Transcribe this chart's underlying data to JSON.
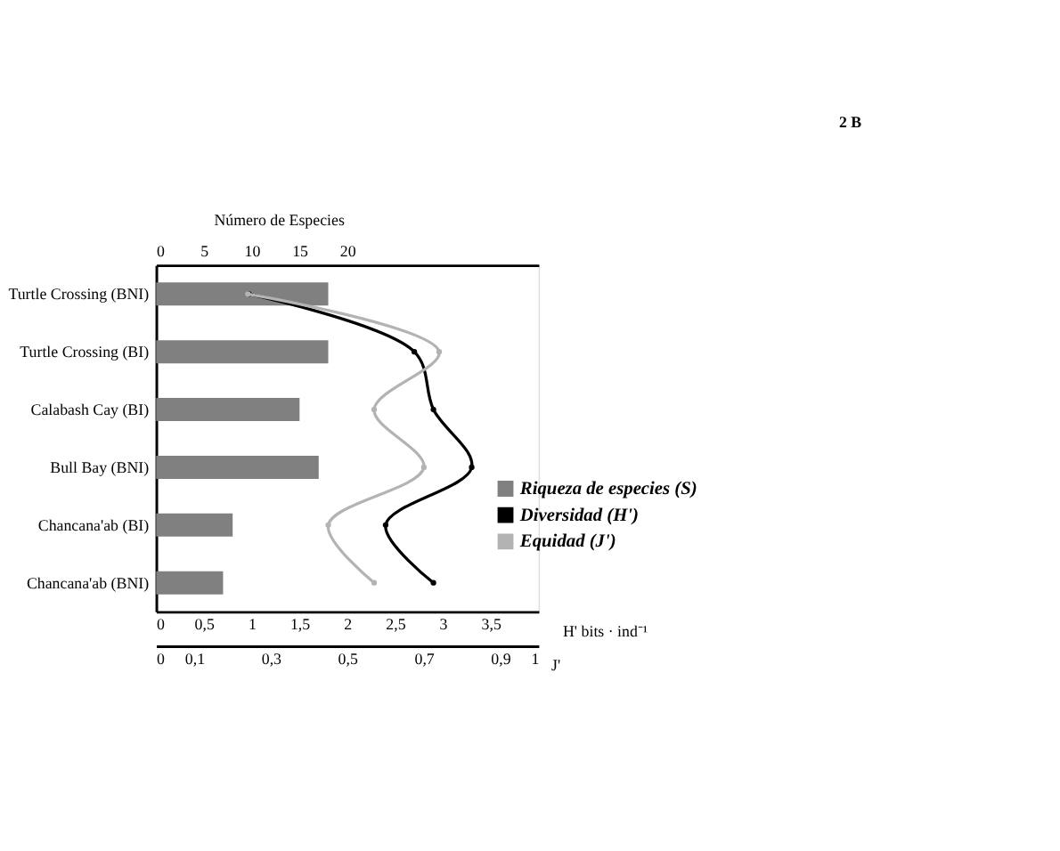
{
  "chart_data": [
    {
      "type": "bar",
      "orientation": "horizontal",
      "annotations": [
        "2 B"
      ],
      "categories": [
        "Turtle Crossing (BNI)",
        "Turtle Crossing (BI)",
        "Calabash Cay (BI)",
        "Bull Bay (BNI)",
        "Chancana'ab (BI)",
        "Chancana'ab (BNI)"
      ],
      "series": [
        {
          "name": "Riqueza de especies  (S)",
          "axis": "x2",
          "color": "#808080",
          "values": [
            18,
            18,
            15,
            17,
            8,
            7
          ]
        },
        {
          "name": "Diversidad (H')",
          "type": "line",
          "color": "#000000",
          "values": [
            0.97,
            2.7,
            2.9,
            3.3,
            2.4,
            2.9
          ]
        }
      ],
      "xlim": [
        0,
        4
      ],
      "xticks": [
        0,
        {
          "value": 0.5,
          "label": "0,5"
        },
        1,
        {
          "value": 1.5,
          "label": "1,5"
        },
        2,
        {
          "value": 2.5,
          "label": "2,5"
        },
        3,
        {
          "value": 3.5,
          "label": "3,5"
        }
      ],
      "xlabel": "H' bits · ind⁻¹",
      "x2lim": [
        0,
        40
      ],
      "x2ticks": [
        0,
        5,
        10,
        15,
        20
      ],
      "x2label": "Número de Especies",
      "marker": "circle",
      "line_style": "solid",
      "legend": "right",
      "grid": false
    },
    {
      "type": "line",
      "orientation": "horizontal",
      "categories": [
        "Turtle Crossing (BNI)",
        "Turtle Crossing (BI)",
        "Calabash Cay (BI)",
        "Bull Bay (BNI)",
        "Chancana'ab (BI)",
        "Chancana'ab (BNI)"
      ],
      "series": [
        {
          "name": "Equidad (J')",
          "color": "#b3b3b3",
          "values": [
            0.24,
            0.74,
            0.57,
            0.7,
            0.45,
            0.57
          ]
        }
      ],
      "xlim": [
        0,
        1
      ],
      "xticks": [
        0,
        {
          "value": 0.1,
          "label": "0,1"
        },
        {
          "value": 0.3,
          "label": "0,3"
        },
        {
          "value": 0.5,
          "label": "0,5"
        },
        {
          "value": 0.7,
          "label": "0,7"
        },
        {
          "value": 0.9,
          "label": "0,9"
        },
        1
      ],
      "xlabel": "J'",
      "tick_labels": "x",
      "marker": "circle",
      "line_style": "solid",
      "grid": false
    }
  ]
}
